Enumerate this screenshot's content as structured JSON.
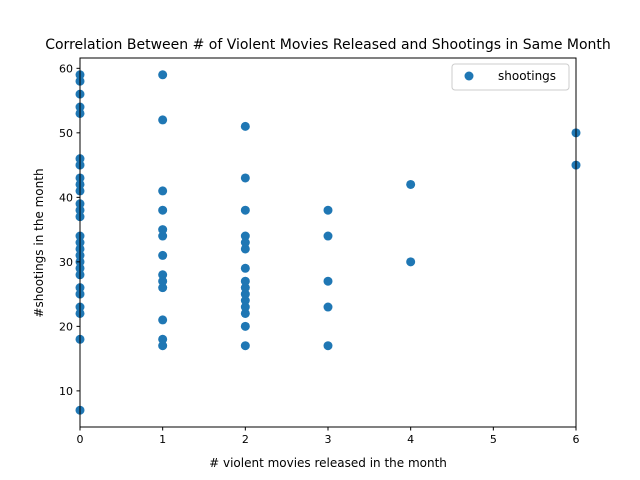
{
  "chart_data": {
    "type": "scatter",
    "title": "Correlation Between # of Violent Movies Released and Shootings in Same Month",
    "xlabel": "# violent movies released in the month",
    "ylabel": "#shootings in the month",
    "xlim": [
      0,
      6
    ],
    "ylim": [
      4.4,
      61.6
    ],
    "xticks": [
      0,
      1,
      2,
      3,
      4,
      5,
      6
    ],
    "yticks": [
      10,
      20,
      30,
      40,
      50,
      60
    ],
    "grid": false,
    "legend_position": "top-right",
    "series": [
      {
        "name": "shootings",
        "color": "#1f77b4",
        "points": [
          [
            0,
            7
          ],
          [
            0,
            18
          ],
          [
            0,
            22
          ],
          [
            0,
            23
          ],
          [
            0,
            25
          ],
          [
            0,
            26
          ],
          [
            0,
            28
          ],
          [
            0,
            29
          ],
          [
            0,
            30
          ],
          [
            0,
            31
          ],
          [
            0,
            32
          ],
          [
            0,
            33
          ],
          [
            0,
            34
          ],
          [
            0,
            37
          ],
          [
            0,
            38
          ],
          [
            0,
            39
          ],
          [
            0,
            41
          ],
          [
            0,
            42
          ],
          [
            0,
            43
          ],
          [
            0,
            45
          ],
          [
            0,
            46
          ],
          [
            0,
            53
          ],
          [
            0,
            54
          ],
          [
            0,
            56
          ],
          [
            0,
            58
          ],
          [
            0,
            59
          ],
          [
            1,
            17
          ],
          [
            1,
            18
          ],
          [
            1,
            21
          ],
          [
            1,
            26
          ],
          [
            1,
            27
          ],
          [
            1,
            28
          ],
          [
            1,
            31
          ],
          [
            1,
            34
          ],
          [
            1,
            35
          ],
          [
            1,
            38
          ],
          [
            1,
            41
          ],
          [
            1,
            52
          ],
          [
            1,
            59
          ],
          [
            2,
            17
          ],
          [
            2,
            20
          ],
          [
            2,
            22
          ],
          [
            2,
            23
          ],
          [
            2,
            24
          ],
          [
            2,
            25
          ],
          [
            2,
            26
          ],
          [
            2,
            27
          ],
          [
            2,
            29
          ],
          [
            2,
            32
          ],
          [
            2,
            33
          ],
          [
            2,
            34
          ],
          [
            2,
            38
          ],
          [
            2,
            43
          ],
          [
            2,
            51
          ],
          [
            3,
            17
          ],
          [
            3,
            23
          ],
          [
            3,
            27
          ],
          [
            3,
            34
          ],
          [
            3,
            38
          ],
          [
            4,
            30
          ],
          [
            4,
            42
          ],
          [
            6,
            45
          ],
          [
            6,
            50
          ]
        ]
      }
    ]
  }
}
